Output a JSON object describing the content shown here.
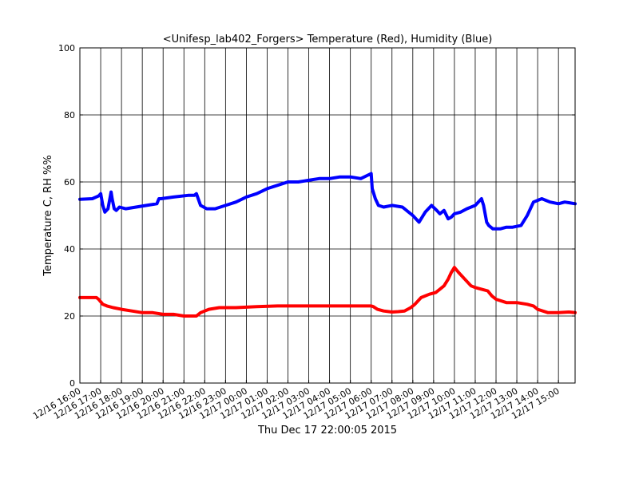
{
  "chart_data": {
    "type": "line",
    "title": "<Unifesp_lab402_Forgers> Temperature (Red), Humidity (Blue)",
    "xlabel": "Thu Dec 17 22:00:05 2015",
    "ylabel": "Temperature C, RH %%",
    "xlim_hours": [
      0,
      23.8
    ],
    "ylim": [
      0,
      100
    ],
    "yticks": [
      0,
      20,
      40,
      60,
      80,
      100
    ],
    "xticks": [
      "12/16 16:00",
      "12/16 17:00",
      "12/16 18:00",
      "12/16 19:00",
      "12/16 20:00",
      "12/16 21:00",
      "12/16 22:00",
      "12/16 23:00",
      "12/17 00:00",
      "12/17 01:00",
      "12/17 02:00",
      "12/17 03:00",
      "12/17 04:00",
      "12/17 05:00",
      "12/17 06:00",
      "12/17 07:00",
      "12/17 08:00",
      "12/17 09:00",
      "12/17 10:00",
      "12/17 11:00",
      "12/17 12:00",
      "12/17 13:00",
      "12/17 14:00",
      "12/17 15:00"
    ],
    "grid": true,
    "series": [
      {
        "color": "#0000ff",
        "x": [
          0,
          0.6,
          0.9,
          1.0,
          1.1,
          1.2,
          1.35,
          1.5,
          1.55,
          1.65,
          1.75,
          1.9,
          2.2,
          2.7,
          3.2,
          3.7,
          3.8,
          3.9,
          4.5,
          5.2,
          5.5,
          5.6,
          5.8,
          6.1,
          6.5,
          7.0,
          7.5,
          8.0,
          8.5,
          9.0,
          9.5,
          10.0,
          10.5,
          11.0,
          11.5,
          12.0,
          12.5,
          13.0,
          13.5,
          14.0,
          14.05,
          14.2,
          14.35,
          14.6,
          15.0,
          15.5,
          16.0,
          16.3,
          16.6,
          16.9,
          17.15,
          17.3,
          17.5,
          17.7,
          17.85,
          18.0,
          18.3,
          18.6,
          19.0,
          19.3,
          19.4,
          19.55,
          19.65,
          19.85,
          20.2,
          20.5,
          20.8,
          21.2,
          21.5,
          21.8,
          22.2,
          22.6,
          23.0,
          23.3,
          23.5,
          23.8
        ],
        "y": [
          54.8,
          55,
          55.8,
          56.5,
          53,
          51,
          52,
          57,
          55,
          52,
          51.5,
          52.5,
          52,
          52.5,
          53,
          53.5,
          55,
          55,
          55.5,
          56,
          56,
          56.5,
          53,
          52,
          52,
          53,
          54,
          55.5,
          56.5,
          58,
          59,
          60,
          60,
          60.5,
          61,
          61,
          61.5,
          61.5,
          61,
          62.5,
          58,
          55,
          53,
          52.5,
          53,
          52.5,
          50,
          48,
          51,
          53,
          51.5,
          50.5,
          51.5,
          49,
          49.5,
          50.5,
          51,
          52,
          53,
          55,
          53,
          48,
          47,
          46,
          46,
          46.5,
          46.5,
          47,
          50,
          54,
          55,
          54,
          53.5,
          54,
          53.8,
          53.5
        ]
      },
      {
        "color": "#ff0000",
        "x": [
          0,
          0.8,
          0.9,
          1.1,
          1.3,
          1.6,
          2.0,
          2.5,
          3.0,
          3.5,
          4.0,
          4.5,
          5.0,
          5.5,
          5.6,
          5.8,
          6.2,
          6.7,
          7.5,
          8.5,
          9.5,
          10.5,
          11.5,
          12.5,
          13.5,
          14.0,
          14.1,
          14.3,
          14.6,
          15.0,
          15.3,
          15.6,
          15.9,
          16.1,
          16.4,
          16.8,
          17.1,
          17.3,
          17.5,
          17.7,
          17.85,
          18.0,
          18.2,
          18.5,
          18.8,
          19.0,
          19.3,
          19.6,
          19.8,
          20.0,
          20.5,
          21.0,
          21.5,
          21.8,
          22.0,
          22.5,
          23.0,
          23.5,
          23.8
        ],
        "y": [
          25.5,
          25.5,
          25,
          23.5,
          23,
          22.5,
          22,
          21.5,
          21,
          21,
          20.5,
          20.5,
          20,
          20,
          20,
          21,
          22,
          22.5,
          22.5,
          22.8,
          23,
          23,
          23,
          23,
          23,
          23,
          22.8,
          22,
          21.5,
          21.2,
          21.3,
          21.5,
          22.5,
          23.5,
          25.5,
          26.5,
          27,
          28,
          29,
          31,
          33,
          34.5,
          33,
          31,
          29,
          28.5,
          28,
          27.5,
          26,
          25,
          24,
          24,
          23.5,
          23,
          22,
          21,
          21,
          21.2,
          21
        ]
      }
    ]
  }
}
